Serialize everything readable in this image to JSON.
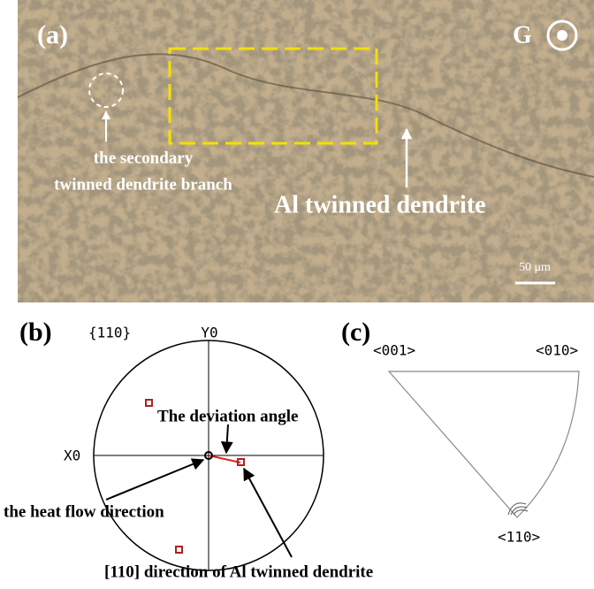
{
  "panel_a": {
    "label": "(a)",
    "gravity": "G",
    "secondary_line1": "the secondary",
    "secondary_line2": "twinned dendrite branch",
    "main_label": "Al twinned  dendrite",
    "scale_bar": "50 μm"
  },
  "panel_b": {
    "label": "(b)",
    "plane": "{110}",
    "y_axis": "Y0",
    "x_axis": "X0",
    "deviation": "The deviation angle",
    "heat_flow": "the heat flow direction",
    "direction": "[110] direction of Al twinned dendrite"
  },
  "panel_c": {
    "label": "(c)",
    "corner_001": "<001>",
    "corner_010": "<010>",
    "corner_110": "<110>"
  }
}
